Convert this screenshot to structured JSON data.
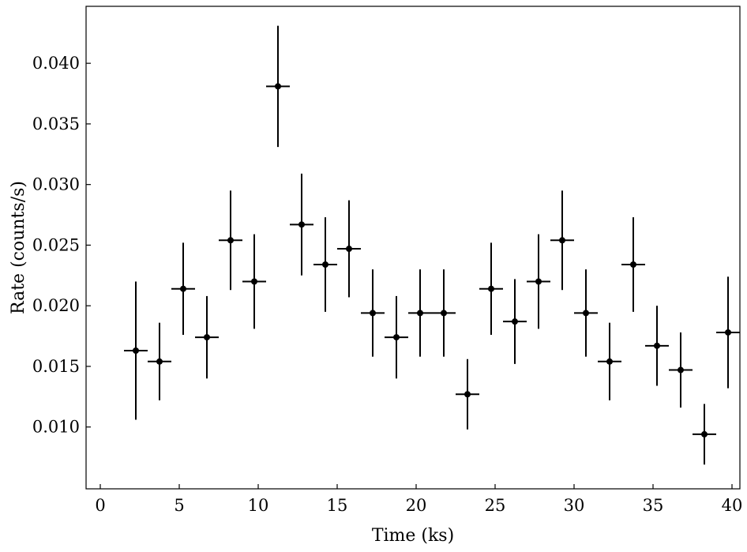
{
  "chart_data": {
    "type": "scatter",
    "title": "",
    "xlabel": "Time (ks)",
    "ylabel": "Rate (counts/s)",
    "xlim": [
      -0.9,
      40.5
    ],
    "ylim": [
      0.0049,
      0.0447
    ],
    "x_ticks": [
      0,
      5,
      10,
      15,
      20,
      25,
      30,
      35,
      40
    ],
    "x_tick_labels": [
      "0",
      "5",
      "10",
      "15",
      "20",
      "25",
      "30",
      "35",
      "40"
    ],
    "y_ticks": [
      0.01,
      0.015,
      0.02,
      0.025,
      0.03,
      0.035,
      0.04
    ],
    "y_tick_labels": [
      "0.010",
      "0.015",
      "0.020",
      "0.025",
      "0.030",
      "0.035",
      "0.040"
    ],
    "grid": false,
    "legend": "none",
    "marker_color": "#000000",
    "points": [
      {
        "x": 2.25,
        "y": 0.0163,
        "xerr": 0.75,
        "yerr": 0.0057
      },
      {
        "x": 3.75,
        "y": 0.0154,
        "xerr": 0.75,
        "yerr": 0.0032
      },
      {
        "x": 5.25,
        "y": 0.0214,
        "xerr": 0.75,
        "yerr": 0.0038
      },
      {
        "x": 6.75,
        "y": 0.0174,
        "xerr": 0.75,
        "yerr": 0.0034
      },
      {
        "x": 8.25,
        "y": 0.0254,
        "xerr": 0.75,
        "yerr": 0.0041
      },
      {
        "x": 9.75,
        "y": 0.022,
        "xerr": 0.75,
        "yerr": 0.0039
      },
      {
        "x": 11.25,
        "y": 0.0381,
        "xerr": 0.75,
        "yerr": 0.005
      },
      {
        "x": 12.75,
        "y": 0.0267,
        "xerr": 0.75,
        "yerr": 0.0042
      },
      {
        "x": 14.25,
        "y": 0.0234,
        "xerr": 0.75,
        "yerr": 0.0039
      },
      {
        "x": 15.75,
        "y": 0.0247,
        "xerr": 0.75,
        "yerr": 0.004
      },
      {
        "x": 17.25,
        "y": 0.0194,
        "xerr": 0.75,
        "yerr": 0.0036
      },
      {
        "x": 18.75,
        "y": 0.0174,
        "xerr": 0.75,
        "yerr": 0.0034
      },
      {
        "x": 20.25,
        "y": 0.0194,
        "xerr": 0.75,
        "yerr": 0.0036
      },
      {
        "x": 21.75,
        "y": 0.0194,
        "xerr": 0.75,
        "yerr": 0.0036
      },
      {
        "x": 23.25,
        "y": 0.0127,
        "xerr": 0.75,
        "yerr": 0.0029
      },
      {
        "x": 24.75,
        "y": 0.0214,
        "xerr": 0.75,
        "yerr": 0.0038
      },
      {
        "x": 26.25,
        "y": 0.0187,
        "xerr": 0.75,
        "yerr": 0.0035
      },
      {
        "x": 27.75,
        "y": 0.022,
        "xerr": 0.75,
        "yerr": 0.0039
      },
      {
        "x": 29.25,
        "y": 0.0254,
        "xerr": 0.75,
        "yerr": 0.0041
      },
      {
        "x": 30.75,
        "y": 0.0194,
        "xerr": 0.75,
        "yerr": 0.0036
      },
      {
        "x": 32.25,
        "y": 0.0154,
        "xerr": 0.75,
        "yerr": 0.0032
      },
      {
        "x": 33.75,
        "y": 0.0234,
        "xerr": 0.75,
        "yerr": 0.0039
      },
      {
        "x": 35.25,
        "y": 0.0167,
        "xerr": 0.75,
        "yerr": 0.0033
      },
      {
        "x": 36.75,
        "y": 0.0147,
        "xerr": 0.75,
        "yerr": 0.0031
      },
      {
        "x": 38.25,
        "y": 0.0094,
        "xerr": 0.75,
        "yerr": 0.0025
      },
      {
        "x": 39.75,
        "y": 0.0178,
        "xerr": 0.75,
        "yerr": 0.0046
      }
    ]
  }
}
